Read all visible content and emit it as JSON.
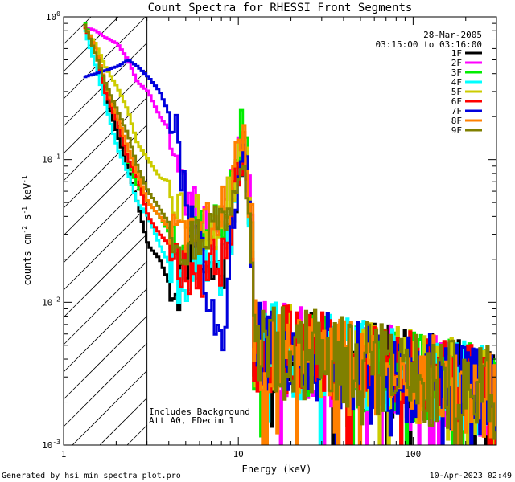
{
  "chart_data": {
    "type": "line",
    "title": "Count Spectra for RHESSI Front Segments",
    "xlabel": "Energy (keV)",
    "ylabel": {
      "base": "counts cm",
      "sup1": "-2",
      "mid1": " s",
      "sup2": "-1",
      "mid2": " keV",
      "sup3": "-1"
    },
    "xscale": "log",
    "yscale": "log",
    "xlim": [
      1,
      300
    ],
    "ylim": [
      0.001,
      1
    ],
    "x_ticks": [
      {
        "value": 1,
        "label": "1"
      },
      {
        "value": 10,
        "label": "10"
      },
      {
        "value": 100,
        "label": "100"
      }
    ],
    "y_ticks": [
      {
        "value": 1,
        "base": "10",
        "exp": "0"
      },
      {
        "value": 0.1,
        "base": "10",
        "exp": "-1"
      },
      {
        "value": 0.01,
        "base": "10",
        "exp": "-2"
      },
      {
        "value": 0.001,
        "base": "10",
        "exp": "-3"
      }
    ],
    "hatched_region": {
      "x_start": 1,
      "x_end": 3,
      "note": "excluded low-energy region"
    },
    "date": "28-Mar-2005",
    "time_range": "03:15:00 to 03:16:00",
    "annotations": [
      "Includes Background",
      "Att A0, FDecim 1"
    ],
    "legend_position": "top-right",
    "series": [
      {
        "name": "1F",
        "color": "#000000",
        "seed": 11,
        "low": [
          [
            1.3,
            0.86
          ],
          [
            1.5,
            0.6
          ],
          [
            1.7,
            0.3
          ],
          [
            2.0,
            0.15
          ],
          [
            2.3,
            0.085
          ],
          [
            2.6,
            0.05
          ],
          [
            3.0,
            0.025
          ],
          [
            3.5,
            0.02
          ],
          [
            4.0,
            0.013
          ],
          [
            4.5,
            0.013
          ],
          [
            5.0,
            0.022
          ],
          [
            6.0,
            0.02
          ],
          [
            7.0,
            0.016
          ],
          [
            8.0,
            0.017
          ],
          [
            9.0,
            0.035
          ],
          [
            10.0,
            0.09
          ],
          [
            10.5,
            0.15
          ],
          [
            11.0,
            0.07
          ],
          [
            12.0,
            0.012
          ]
        ]
      },
      {
        "name": "2F",
        "color": "#ff00ff",
        "seed": 23,
        "low": [
          [
            1.3,
            0.85
          ],
          [
            1.5,
            0.8
          ],
          [
            1.7,
            0.72
          ],
          [
            2.0,
            0.65
          ],
          [
            2.3,
            0.5
          ],
          [
            2.6,
            0.35
          ],
          [
            3.0,
            0.3
          ],
          [
            3.5,
            0.2
          ],
          [
            4.0,
            0.16
          ],
          [
            4.5,
            0.08
          ],
          [
            5.0,
            0.05
          ],
          [
            6.0,
            0.04
          ],
          [
            7.0,
            0.03
          ],
          [
            8.0,
            0.05
          ],
          [
            9.0,
            0.06
          ],
          [
            10.0,
            0.12
          ],
          [
            10.5,
            0.18
          ],
          [
            11.0,
            0.08
          ],
          [
            12.0,
            0.03
          ]
        ]
      },
      {
        "name": "3F",
        "color": "#00ee00",
        "seed": 37,
        "low": [
          [
            1.3,
            0.9
          ],
          [
            1.5,
            0.6
          ],
          [
            1.7,
            0.33
          ],
          [
            2.0,
            0.18
          ],
          [
            2.3,
            0.1
          ],
          [
            2.6,
            0.065
          ],
          [
            3.0,
            0.05
          ],
          [
            3.5,
            0.04
          ],
          [
            4.0,
            0.03
          ],
          [
            4.5,
            0.03
          ],
          [
            5.0,
            0.03
          ],
          [
            6.0,
            0.035
          ],
          [
            7.0,
            0.032
          ],
          [
            8.0,
            0.04
          ],
          [
            9.0,
            0.06
          ],
          [
            10.0,
            0.12
          ],
          [
            10.5,
            0.17
          ],
          [
            11.0,
            0.09
          ],
          [
            12.0,
            0.02
          ]
        ]
      },
      {
        "name": "4F",
        "color": "#00ffff",
        "seed": 41,
        "low": [
          [
            1.3,
            0.8
          ],
          [
            1.5,
            0.45
          ],
          [
            1.7,
            0.25
          ],
          [
            2.0,
            0.12
          ],
          [
            2.3,
            0.08
          ],
          [
            2.6,
            0.05
          ],
          [
            3.0,
            0.04
          ],
          [
            3.5,
            0.025
          ],
          [
            4.0,
            0.018
          ],
          [
            4.5,
            0.013
          ],
          [
            5.0,
            0.016
          ],
          [
            6.0,
            0.016
          ],
          [
            7.0,
            0.016
          ],
          [
            8.0,
            0.018
          ],
          [
            9.0,
            0.03
          ],
          [
            10.0,
            0.09
          ],
          [
            10.5,
            0.15
          ],
          [
            11.0,
            0.06
          ],
          [
            12.0,
            0.015
          ]
        ]
      },
      {
        "name": "5F",
        "color": "#cccc00",
        "seed": 53,
        "low": [
          [
            1.3,
            0.83
          ],
          [
            1.5,
            0.65
          ],
          [
            1.7,
            0.45
          ],
          [
            2.0,
            0.32
          ],
          [
            2.3,
            0.22
          ],
          [
            2.6,
            0.13
          ],
          [
            3.0,
            0.1
          ],
          [
            3.5,
            0.075
          ],
          [
            4.0,
            0.07
          ],
          [
            4.5,
            0.05
          ],
          [
            5.0,
            0.044
          ],
          [
            6.0,
            0.04
          ],
          [
            7.0,
            0.03
          ],
          [
            8.0,
            0.045
          ],
          [
            9.0,
            0.055
          ],
          [
            10.0,
            0.11
          ],
          [
            10.5,
            0.16
          ],
          [
            11.0,
            0.085
          ],
          [
            12.0,
            0.025
          ]
        ]
      },
      {
        "name": "6F",
        "color": "#ff0000",
        "seed": 67,
        "low": [
          [
            1.3,
            0.84
          ],
          [
            1.5,
            0.6
          ],
          [
            1.7,
            0.3
          ],
          [
            2.0,
            0.18
          ],
          [
            2.3,
            0.1
          ],
          [
            2.6,
            0.075
          ],
          [
            3.0,
            0.04
          ],
          [
            3.5,
            0.03
          ],
          [
            4.0,
            0.025
          ],
          [
            4.5,
            0.02
          ],
          [
            5.0,
            0.018
          ],
          [
            6.0,
            0.016
          ],
          [
            7.0,
            0.018
          ],
          [
            8.0,
            0.02
          ],
          [
            9.0,
            0.04
          ],
          [
            10.0,
            0.1
          ],
          [
            10.5,
            0.15
          ],
          [
            11.0,
            0.07
          ],
          [
            12.0,
            0.015
          ]
        ]
      },
      {
        "name": "7F",
        "color": "#0000dd",
        "seed": 79,
        "low": [
          [
            1.3,
            0.38
          ],
          [
            1.5,
            0.4
          ],
          [
            1.7,
            0.42
          ],
          [
            2.0,
            0.45
          ],
          [
            2.3,
            0.5
          ],
          [
            2.6,
            0.45
          ],
          [
            3.0,
            0.38
          ],
          [
            3.5,
            0.3
          ],
          [
            4.0,
            0.2
          ],
          [
            4.5,
            0.12
          ],
          [
            5.0,
            0.05
          ],
          [
            6.0,
            0.025
          ],
          [
            7.0,
            0.008
          ],
          [
            7.5,
            0.0045
          ],
          [
            8.0,
            0.006
          ],
          [
            9.0,
            0.03
          ],
          [
            10.0,
            0.1
          ],
          [
            10.5,
            0.16
          ],
          [
            11.0,
            0.07
          ],
          [
            12.0,
            0.015
          ]
        ]
      },
      {
        "name": "8F",
        "color": "#ff8000",
        "seed": 83,
        "low": [
          [
            1.3,
            0.87
          ],
          [
            1.5,
            0.6
          ],
          [
            1.7,
            0.35
          ],
          [
            2.0,
            0.2
          ],
          [
            2.3,
            0.12
          ],
          [
            2.6,
            0.08
          ],
          [
            3.0,
            0.05
          ],
          [
            3.5,
            0.04
          ],
          [
            4.0,
            0.032
          ],
          [
            4.5,
            0.03
          ],
          [
            5.0,
            0.032
          ],
          [
            6.0,
            0.03
          ],
          [
            7.0,
            0.035
          ],
          [
            8.0,
            0.045
          ],
          [
            9.0,
            0.06
          ],
          [
            10.0,
            0.12
          ],
          [
            10.5,
            0.17
          ],
          [
            11.0,
            0.09
          ],
          [
            12.0,
            0.025
          ]
        ]
      },
      {
        "name": "9F",
        "color": "#808000",
        "seed": 97,
        "low": [
          [
            1.3,
            0.88
          ],
          [
            1.5,
            0.55
          ],
          [
            1.7,
            0.35
          ],
          [
            2.0,
            0.22
          ],
          [
            2.3,
            0.15
          ],
          [
            2.6,
            0.09
          ],
          [
            3.0,
            0.06
          ],
          [
            3.5,
            0.045
          ],
          [
            4.0,
            0.035
          ],
          [
            4.5,
            0.03
          ],
          [
            5.0,
            0.025
          ],
          [
            6.0,
            0.03
          ],
          [
            7.0,
            0.035
          ],
          [
            8.0,
            0.04
          ],
          [
            9.0,
            0.055
          ],
          [
            10.0,
            0.11
          ],
          [
            10.5,
            0.16
          ],
          [
            11.0,
            0.08
          ],
          [
            12.0,
            0.02
          ]
        ]
      }
    ]
  },
  "footer": {
    "left": "Generated by hsi_min_spectra_plot.pro",
    "right": "10-Apr-2023 02:49"
  }
}
